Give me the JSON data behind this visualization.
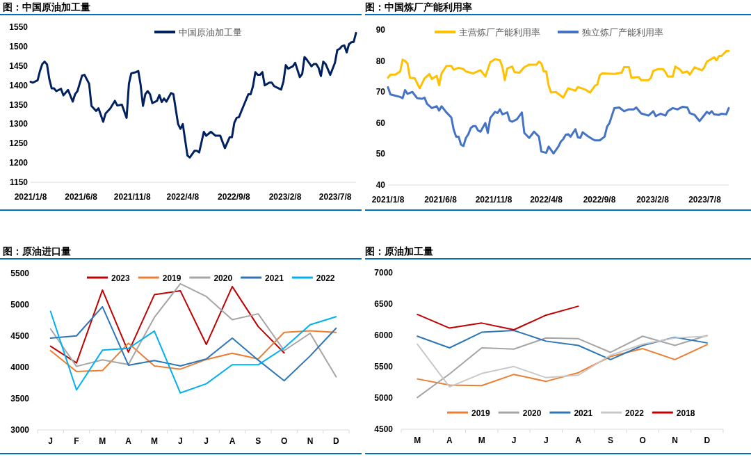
{
  "chart_data": [
    {
      "type": "line",
      "title": "图：中国原油加工量",
      "xlim": [
        "2021-01-08",
        "2023-09-08"
      ],
      "xticks": [
        {
          "value": "2021-01-08",
          "label": "2021/1/8"
        },
        {
          "value": "2021-06-08",
          "label": "2021/6/8"
        },
        {
          "value": "2021-11-08",
          "label": "2021/11/8"
        },
        {
          "value": "2022-04-08",
          "label": "2022/4/8"
        },
        {
          "value": "2022-09-08",
          "label": "2022/9/8"
        },
        {
          "value": "2023-02-08",
          "label": "2023/2/8"
        },
        {
          "value": "2023-07-08",
          "label": "2023/7/8"
        }
      ],
      "ylim": [
        1150,
        1550
      ],
      "yticks": [
        1150,
        1200,
        1250,
        1300,
        1350,
        1400,
        1450,
        1500,
        1550
      ],
      "legend": "top",
      "series": [
        {
          "name": "中国原油加工量",
          "color": "#002060",
          "x": [
            "2021-01-08",
            "2021-01-15",
            "2021-01-29",
            "2021-02-05",
            "2021-02-12",
            "2021-02-19",
            "2021-02-26",
            "2021-03-05",
            "2021-03-12",
            "2021-03-19",
            "2021-03-26",
            "2021-04-09",
            "2021-04-16",
            "2021-04-30",
            "2021-05-14",
            "2021-05-21",
            "2021-05-28",
            "2021-06-11",
            "2021-06-18",
            "2021-07-02",
            "2021-07-09",
            "2021-07-23",
            "2021-07-30",
            "2021-08-13",
            "2021-08-20",
            "2021-09-03",
            "2021-09-17",
            "2021-09-24",
            "2021-10-08",
            "2021-10-22",
            "2021-10-29",
            "2021-11-05",
            "2021-11-19",
            "2021-11-26",
            "2021-12-03",
            "2021-12-10",
            "2021-12-17",
            "2021-12-24",
            "2021-12-31",
            "2022-01-07",
            "2022-01-21",
            "2022-01-28",
            "2022-02-04",
            "2022-02-11",
            "2022-02-18",
            "2022-03-04",
            "2022-03-11",
            "2022-03-25",
            "2022-04-01",
            "2022-04-08",
            "2022-04-22",
            "2022-04-29",
            "2022-05-13",
            "2022-05-20",
            "2022-05-27",
            "2022-06-10",
            "2022-06-17",
            "2022-07-01",
            "2022-07-15",
            "2022-07-29",
            "2022-08-12",
            "2022-08-26",
            "2022-09-02",
            "2022-09-09",
            "2022-09-16",
            "2022-09-23",
            "2022-09-30",
            "2022-10-21",
            "2022-10-28",
            "2022-11-04",
            "2022-11-11",
            "2022-11-18",
            "2022-11-25",
            "2022-12-02",
            "2022-12-09",
            "2022-12-23",
            "2022-12-30",
            "2023-01-06",
            "2023-01-20",
            "2023-01-27",
            "2023-02-03",
            "2023-02-10",
            "2023-02-17",
            "2023-03-03",
            "2023-03-10",
            "2023-03-24",
            "2023-03-31",
            "2023-04-07",
            "2023-04-14",
            "2023-04-28",
            "2023-05-05",
            "2023-05-12",
            "2023-05-19",
            "2023-05-26",
            "2023-06-02",
            "2023-06-09",
            "2023-06-23",
            "2023-07-07",
            "2023-07-14",
            "2023-07-21",
            "2023-07-28",
            "2023-08-04",
            "2023-08-11",
            "2023-08-18",
            "2023-08-25",
            "2023-09-01",
            "2023-09-08"
          ],
          "values": [
            1409,
            1407,
            1413,
            1437,
            1455,
            1461,
            1454,
            1416,
            1392,
            1392,
            1385,
            1391,
            1374,
            1388,
            1358,
            1377,
            1385,
            1425,
            1427,
            1404,
            1347,
            1334,
            1341,
            1306,
            1327,
            1340,
            1360,
            1348,
            1350,
            1316,
            1404,
            1431,
            1434,
            1437,
            1401,
            1347,
            1377,
            1385,
            1377,
            1354,
            1360,
            1375,
            1357,
            1366,
            1358,
            1380,
            1377,
            1300,
            1288,
            1300,
            1219,
            1214,
            1231,
            1231,
            1227,
            1280,
            1270,
            1280,
            1270,
            1270,
            1238,
            1266,
            1266,
            1303,
            1316,
            1318,
            1333,
            1377,
            1377,
            1398,
            1434,
            1427,
            1427,
            1434,
            1400,
            1407,
            1407,
            1398,
            1392,
            1389,
            1410,
            1452,
            1443,
            1449,
            1458,
            1421,
            1429,
            1473,
            1466,
            1449,
            1455,
            1455,
            1445,
            1424,
            1461,
            1455,
            1427,
            1458,
            1491,
            1494,
            1501,
            1503,
            1485,
            1506,
            1511,
            1512,
            1535
          ]
        }
      ]
    },
    {
      "type": "line",
      "title": "图：中国炼厂产能利用率",
      "xlim": [
        "2021-01-08",
        "2023-09-15"
      ],
      "xticks": [
        {
          "value": "2021-01-08",
          "label": "2021/1/8"
        },
        {
          "value": "2021-06-08",
          "label": "2021/6/8"
        },
        {
          "value": "2021-11-08",
          "label": "2021/11/8"
        },
        {
          "value": "2022-04-08",
          "label": "2022/4/8"
        },
        {
          "value": "2022-09-08",
          "label": "2022/9/8"
        },
        {
          "value": "2023-02-08",
          "label": "2023/2/8"
        },
        {
          "value": "2023-07-08",
          "label": "2023/7/8"
        }
      ],
      "ylim": [
        40,
        90
      ],
      "yticks": [
        40,
        50,
        60,
        70,
        80,
        90
      ],
      "legend": "top",
      "series": [
        {
          "name": "主营炼厂产能利用率",
          "color": "#ffc000",
          "x": [
            "2021-01-08",
            "2021-01-15",
            "2021-01-29",
            "2021-02-12",
            "2021-02-19",
            "2021-02-26",
            "2021-03-05",
            "2021-03-12",
            "2021-03-26",
            "2021-04-09",
            "2021-04-23",
            "2021-05-07",
            "2021-05-14",
            "2021-05-28",
            "2021-06-04",
            "2021-06-11",
            "2021-06-25",
            "2021-07-09",
            "2021-07-16",
            "2021-07-30",
            "2021-08-13",
            "2021-08-20",
            "2021-09-10",
            "2021-10-01",
            "2021-10-08",
            "2021-10-15",
            "2021-10-29",
            "2021-11-12",
            "2021-11-26",
            "2021-12-03",
            "2021-12-10",
            "2021-12-17",
            "2021-12-31",
            "2022-01-07",
            "2022-01-21",
            "2022-02-04",
            "2022-02-18",
            "2022-03-11",
            "2022-03-18",
            "2022-03-25",
            "2022-04-01",
            "2022-04-08",
            "2022-04-15",
            "2022-04-22",
            "2022-05-06",
            "2022-05-27",
            "2022-06-10",
            "2022-07-01",
            "2022-07-08",
            "2022-07-29",
            "2022-08-12",
            "2022-08-26",
            "2022-09-02",
            "2022-09-09",
            "2022-09-16",
            "2022-10-21",
            "2022-11-11",
            "2022-11-18",
            "2022-12-02",
            "2022-12-09",
            "2022-12-30",
            "2023-01-06",
            "2023-01-27",
            "2023-02-03",
            "2023-02-10",
            "2023-02-24",
            "2023-03-10",
            "2023-03-17",
            "2023-03-24",
            "2023-04-07",
            "2023-04-14",
            "2023-04-28",
            "2023-05-05",
            "2023-05-19",
            "2023-05-26",
            "2023-06-09",
            "2023-06-16",
            "2023-06-30",
            "2023-07-07",
            "2023-07-14",
            "2023-07-21",
            "2023-08-04",
            "2023-08-11",
            "2023-08-18",
            "2023-08-25",
            "2023-09-08",
            "2023-09-15"
          ],
          "values": [
            74.6,
            75.6,
            75.6,
            76.6,
            80.4,
            80,
            79.2,
            74.6,
            74.4,
            71.2,
            74.4,
            75.8,
            74.2,
            75.2,
            72.2,
            76,
            78.4,
            78.4,
            77.2,
            77.8,
            77.4,
            76.6,
            76,
            77,
            76,
            75,
            79.6,
            80.6,
            80.2,
            78,
            73.8,
            77.6,
            78.2,
            76.4,
            76.2,
            78,
            78.8,
            78.8,
            79.8,
            79.2,
            76.6,
            76.6,
            72,
            69.8,
            70,
            68.2,
            71.2,
            70.4,
            71.6,
            70.8,
            69.8,
            72,
            72.4,
            75.4,
            76,
            75.8,
            76.2,
            78,
            78,
            74.6,
            74.8,
            73.8,
            73.8,
            74.6,
            76.8,
            77.4,
            77.4,
            76.4,
            75,
            75,
            78.2,
            77.2,
            76.2,
            76.6,
            75.6,
            78,
            77.6,
            77,
            78,
            79.8,
            80.2,
            81.2,
            80.2,
            81.6,
            81.6,
            83.2,
            83.2
          ]
        },
        {
          "name": "独立炼厂产能利用率",
          "color": "#4472c4",
          "x": [
            "2021-01-08",
            "2021-01-15",
            "2021-01-29",
            "2021-02-12",
            "2021-02-19",
            "2021-02-26",
            "2021-03-05",
            "2021-03-19",
            "2021-04-02",
            "2021-04-16",
            "2021-04-23",
            "2021-04-30",
            "2021-05-14",
            "2021-05-28",
            "2021-06-04",
            "2021-06-11",
            "2021-06-25",
            "2021-07-09",
            "2021-07-16",
            "2021-07-23",
            "2021-07-30",
            "2021-08-06",
            "2021-08-13",
            "2021-08-20",
            "2021-08-27",
            "2021-09-03",
            "2021-09-10",
            "2021-09-17",
            "2021-09-24",
            "2021-10-01",
            "2021-10-15",
            "2021-10-22",
            "2021-10-29",
            "2021-11-12",
            "2021-11-19",
            "2021-11-26",
            "2021-12-03",
            "2021-12-17",
            "2021-12-24",
            "2021-12-31",
            "2022-01-14",
            "2022-01-28",
            "2022-02-04",
            "2022-02-18",
            "2022-03-04",
            "2022-03-18",
            "2022-03-25",
            "2022-04-08",
            "2022-04-15",
            "2022-04-29",
            "2022-05-13",
            "2022-05-20",
            "2022-05-27",
            "2022-06-03",
            "2022-06-10",
            "2022-06-17",
            "2022-07-01",
            "2022-07-08",
            "2022-07-15",
            "2022-07-22",
            "2022-08-05",
            "2022-08-19",
            "2022-08-26",
            "2022-09-09",
            "2022-09-23",
            "2022-09-30",
            "2022-10-07",
            "2022-10-21",
            "2022-11-04",
            "2022-11-18",
            "2022-12-02",
            "2022-12-16",
            "2022-12-23",
            "2023-01-06",
            "2023-01-27",
            "2023-02-10",
            "2023-02-17",
            "2023-03-03",
            "2023-03-17",
            "2023-03-24",
            "2023-04-07",
            "2023-04-21",
            "2023-05-05",
            "2023-05-19",
            "2023-05-26",
            "2023-06-09",
            "2023-06-23",
            "2023-07-07",
            "2023-07-14",
            "2023-07-21",
            "2023-07-28",
            "2023-08-04",
            "2023-08-18",
            "2023-08-25",
            "2023-09-08",
            "2023-09-15"
          ],
          "values": [
            71.5,
            69.2,
            68.8,
            68.4,
            68,
            70.6,
            69.4,
            70,
            68,
            67.8,
            68.2,
            66.2,
            64.8,
            65.4,
            64,
            65.4,
            63.4,
            61.8,
            57.8,
            55.6,
            55.6,
            53,
            52.6,
            55.2,
            56.4,
            58.4,
            59,
            59,
            57.6,
            57.2,
            60,
            56.8,
            61.6,
            63.6,
            63.2,
            64.4,
            62.8,
            63.4,
            60.8,
            60.4,
            61.2,
            63.4,
            56.8,
            55.2,
            57.2,
            55.6,
            50.8,
            50.4,
            52.4,
            50.2,
            52.4,
            54,
            54.8,
            56.2,
            56.4,
            55.6,
            58,
            55.4,
            55.2,
            57,
            55.8,
            54.8,
            54.4,
            54.4,
            55.6,
            58.8,
            60,
            64.8,
            65,
            63.8,
            64.4,
            64.4,
            65,
            63.1,
            62.4,
            63.8,
            62.2,
            63,
            62.4,
            63.8,
            64.8,
            64.4,
            65.2,
            65,
            63.2,
            62.6,
            60.6,
            62.6,
            63.6,
            63,
            63.8,
            62.8,
            62.6,
            63,
            62.8,
            64.8
          ]
        }
      ]
    },
    {
      "type": "line",
      "title": "图：原油进口量",
      "categories": [
        "J",
        "F",
        "M",
        "A",
        "M",
        "J",
        "J",
        "A",
        "S",
        "O",
        "N",
        "D"
      ],
      "ylim": [
        3000,
        5500
      ],
      "yticks": [
        3000,
        3500,
        4000,
        4500,
        5000,
        5500
      ],
      "legend": "top",
      "series": [
        {
          "name": "2023",
          "color": "#c00000",
          "values": [
            4337,
            4071,
            5234,
            4244,
            5160,
            5223,
            4366,
            5290,
            4651,
            4230,
            null,
            null
          ]
        },
        {
          "name": "2019",
          "color": "#ed7d31",
          "values": [
            4267,
            3934,
            3949,
            4385,
            4023,
            3971,
            4126,
            4226,
            4134,
            4558,
            4584,
            4558
          ]
        },
        {
          "name": "2020",
          "color": "#a5a5a5",
          "values": [
            4614,
            4015,
            4119,
            4045,
            4798,
            5334,
            5131,
            4761,
            4854,
            4267,
            4544,
            3849
          ]
        },
        {
          "name": "2021",
          "color": "#2e75b6",
          "values": [
            4466,
            4503,
            4968,
            4034,
            4108,
            4023,
            4134,
            4466,
            4115,
            3786,
            4182,
            4625
          ]
        },
        {
          "name": "2022",
          "color": "#00b0f0",
          "values": [
            4894,
            3639,
            4274,
            4303,
            4580,
            3591,
            3738,
            4041,
            4041,
            4311,
            4680,
            4809
          ]
        }
      ]
    },
    {
      "type": "line",
      "title": "图：原油加工量",
      "categories": [
        "M",
        "A",
        "M",
        "J",
        "J",
        "A",
        "S",
        "O",
        "N",
        "D"
      ],
      "ylim": [
        4500,
        7000
      ],
      "yticks": [
        4500,
        5000,
        5500,
        6000,
        6500,
        7000
      ],
      "legend": "bottom",
      "series": [
        {
          "name": "2019",
          "color": "#ed7d31",
          "values": [
            5304,
            5205,
            5197,
            5376,
            5265,
            5403,
            5661,
            5788,
            5613,
            5851
          ]
        },
        {
          "name": "2020",
          "color": "#a5a5a5",
          "values": [
            5007,
            5384,
            5800,
            5780,
            5958,
            5946,
            5728,
            5986,
            5839,
            5998
          ]
        },
        {
          "name": "2021",
          "color": "#2e75b6",
          "values": [
            5986,
            5800,
            6049,
            6077,
            5907,
            5839,
            5613,
            5839,
            5970,
            5879
          ]
        },
        {
          "name": "2022",
          "color": "#c8c8c8",
          "values": [
            5859,
            5177,
            5391,
            5502,
            5324,
            5364,
            5681,
            5859,
            5958,
            5986
          ]
        },
        {
          "name": "2018",
          "color": "#c00000",
          "values": [
            6334,
            6116,
            6196,
            6089,
            6323,
            6465,
            null,
            null,
            null,
            null
          ]
        }
      ]
    }
  ]
}
